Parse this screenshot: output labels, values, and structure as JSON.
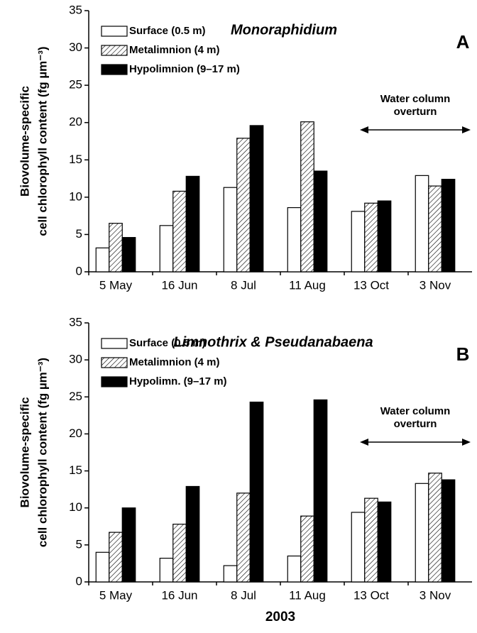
{
  "xlabel": "2003",
  "chart_data": [
    {
      "type": "bar",
      "title": "Monoraphidium",
      "panel_label": "A",
      "ylabel": [
        "Biovolume-specific",
        "cell chlorophyll content (fg µm⁻³)"
      ],
      "annotation": [
        "Water column",
        "overturn"
      ],
      "categories": [
        "5 May",
        "16 Jun",
        "8 Jul",
        "11 Aug",
        "13 Oct",
        "3 Nov"
      ],
      "series": [
        {
          "name": "Surface (0.5 m)",
          "color": "#ffffff",
          "values": [
            3.2,
            6.2,
            11.3,
            8.6,
            8.1,
            12.9
          ]
        },
        {
          "name": "Metalimnion (4 m)",
          "color": "#ffffff",
          "pattern": "hatch",
          "values": [
            6.5,
            10.8,
            17.9,
            20.1,
            9.2,
            11.5
          ]
        },
        {
          "name": "Hypolimnion (9–17 m)",
          "color": "#000000",
          "values": [
            4.6,
            12.8,
            19.6,
            13.5,
            9.5,
            12.4
          ]
        }
      ],
      "ylim": [
        0,
        35
      ],
      "yticks": [
        0,
        5,
        10,
        15,
        20,
        25,
        30,
        35
      ],
      "grid": false,
      "legend": "upper left"
    },
    {
      "type": "bar",
      "title": "Limnothrix & Pseudanabaena",
      "panel_label": "B",
      "ylabel": [
        "Biovolume-specific",
        "cell chlorophyll content (fg µm⁻³)"
      ],
      "annotation": [
        "Water column",
        "overturn"
      ],
      "categories": [
        "5 May",
        "16 Jun",
        "8 Jul",
        "11 Aug",
        "13 Oct",
        "3 Nov"
      ],
      "series": [
        {
          "name": "Surface (0.5 m)",
          "color": "#ffffff",
          "values": [
            4.0,
            3.2,
            2.2,
            3.5,
            9.4,
            13.3
          ]
        },
        {
          "name": "Metalimnion (4 m)",
          "color": "#ffffff",
          "pattern": "hatch",
          "values": [
            6.7,
            7.8,
            12.0,
            8.9,
            11.3,
            14.7
          ]
        },
        {
          "name": "Hypolimn. (9–17 m)",
          "color": "#000000",
          "values": [
            10.0,
            12.9,
            24.3,
            24.6,
            10.8,
            13.8
          ]
        }
      ],
      "ylim": [
        0,
        35
      ],
      "yticks": [
        0,
        5,
        10,
        15,
        20,
        25,
        30,
        35
      ],
      "grid": false,
      "legend": "upper left"
    }
  ]
}
